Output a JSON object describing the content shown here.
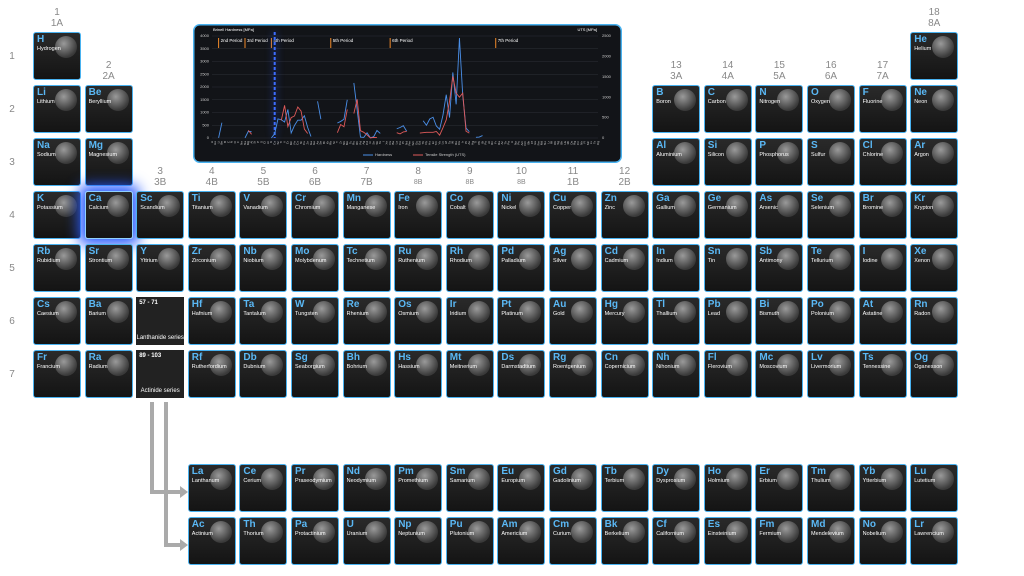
{
  "groups": [
    {
      "number": "1",
      "label": "1A"
    },
    {
      "number": "2",
      "label": "2A"
    },
    {
      "number": "3",
      "label": "3B"
    },
    {
      "number": "4",
      "label": "4B"
    },
    {
      "number": "5",
      "label": "5B"
    },
    {
      "number": "6",
      "label": "6B"
    },
    {
      "number": "7",
      "label": "7B"
    },
    {
      "number": "8",
      "label": "8B"
    },
    {
      "number": "9",
      "label": "8B"
    },
    {
      "number": "10",
      "label": "8B"
    },
    {
      "number": "11",
      "label": "1B"
    },
    {
      "number": "12",
      "label": "2B"
    },
    {
      "number": "13",
      "label": "3A"
    },
    {
      "number": "14",
      "label": "4A"
    },
    {
      "number": "15",
      "label": "5A"
    },
    {
      "number": "16",
      "label": "6A"
    },
    {
      "number": "17",
      "label": "7A"
    },
    {
      "number": "18",
      "label": "8A"
    }
  ],
  "periods": [
    "1",
    "2",
    "3",
    "4",
    "5",
    "6",
    "7"
  ],
  "highlight": "Ca",
  "lanthanide_placeholder": {
    "range": "57 - 71",
    "label": "Lanthanide series"
  },
  "actinide_placeholder": {
    "range": "89 - 103",
    "label": "Actinide series"
  },
  "elements": [
    [
      "H",
      "Hydrogen"
    ],
    [
      "He",
      "Helium"
    ],
    [
      "Li",
      "Lithium"
    ],
    [
      "Be",
      "Beryllium"
    ],
    [
      "B",
      "Boron"
    ],
    [
      "C",
      "Carbon"
    ],
    [
      "N",
      "Nitrogen"
    ],
    [
      "O",
      "Oxygen"
    ],
    [
      "F",
      "Fluorine"
    ],
    [
      "Ne",
      "Neon"
    ],
    [
      "Na",
      "Sodium"
    ],
    [
      "Mg",
      "Magnesium"
    ],
    [
      "Al",
      "Aluminium"
    ],
    [
      "Si",
      "Silicon"
    ],
    [
      "P",
      "Phosphorus"
    ],
    [
      "S",
      "Sulfur"
    ],
    [
      "Cl",
      "Chlorine"
    ],
    [
      "Ar",
      "Argon"
    ],
    [
      "K",
      "Potassium"
    ],
    [
      "Ca",
      "Calcium"
    ],
    [
      "Sc",
      "Scandium"
    ],
    [
      "Ti",
      "Titanium"
    ],
    [
      "V",
      "Vanadium"
    ],
    [
      "Cr",
      "Chromium"
    ],
    [
      "Mn",
      "Manganese"
    ],
    [
      "Fe",
      "Iron"
    ],
    [
      "Co",
      "Cobalt"
    ],
    [
      "Ni",
      "Nickel"
    ],
    [
      "Cu",
      "Copper"
    ],
    [
      "Zn",
      "Zinc"
    ],
    [
      "Ga",
      "Gallium"
    ],
    [
      "Ge",
      "Germanium"
    ],
    [
      "As",
      "Arsenic"
    ],
    [
      "Se",
      "Selenium"
    ],
    [
      "Br",
      "Bromine"
    ],
    [
      "Kr",
      "Krypton"
    ],
    [
      "Rb",
      "Rubidium"
    ],
    [
      "Sr",
      "Strontium"
    ],
    [
      "Y",
      "Yttrium"
    ],
    [
      "Zr",
      "Zirconium"
    ],
    [
      "Nb",
      "Niobium"
    ],
    [
      "Mo",
      "Molybdenum"
    ],
    [
      "Tc",
      "Technetium"
    ],
    [
      "Ru",
      "Ruthenium"
    ],
    [
      "Rh",
      "Rhodium"
    ],
    [
      "Pd",
      "Palladium"
    ],
    [
      "Ag",
      "Silver"
    ],
    [
      "Cd",
      "Cadmium"
    ],
    [
      "In",
      "Indium"
    ],
    [
      "Sn",
      "Tin"
    ],
    [
      "Sb",
      "Antimony"
    ],
    [
      "Te",
      "Tellurium"
    ],
    [
      "I",
      "Iodine"
    ],
    [
      "Xe",
      "Xenon"
    ],
    [
      "Cs",
      "Caesium"
    ],
    [
      "Ba",
      "Barium"
    ],
    [
      "La",
      "Lanthanum"
    ],
    [
      "Ce",
      "Cerium"
    ],
    [
      "Pr",
      "Praseodymium"
    ],
    [
      "Nd",
      "Neodymium"
    ],
    [
      "Pm",
      "Promethium"
    ],
    [
      "Sm",
      "Samarium"
    ],
    [
      "Eu",
      "Europium"
    ],
    [
      "Gd",
      "Gadolinium"
    ],
    [
      "Tb",
      "Terbium"
    ],
    [
      "Dy",
      "Dysprosium"
    ],
    [
      "Ho",
      "Holmium"
    ],
    [
      "Er",
      "Erbium"
    ],
    [
      "Tm",
      "Thulium"
    ],
    [
      "Yb",
      "Ytterbium"
    ],
    [
      "Lu",
      "Lutetium"
    ],
    [
      "Hf",
      "Hafnium"
    ],
    [
      "Ta",
      "Tantalum"
    ],
    [
      "W",
      "Tungsten"
    ],
    [
      "Re",
      "Rhenium"
    ],
    [
      "Os",
      "Osmium"
    ],
    [
      "Ir",
      "Iridium"
    ],
    [
      "Pt",
      "Platinum"
    ],
    [
      "Au",
      "Gold"
    ],
    [
      "Hg",
      "Mercury"
    ],
    [
      "Tl",
      "Thallium"
    ],
    [
      "Pb",
      "Lead"
    ],
    [
      "Bi",
      "Bismuth"
    ],
    [
      "Po",
      "Polonium"
    ],
    [
      "At",
      "Astatine"
    ],
    [
      "Rn",
      "Radon"
    ],
    [
      "Fr",
      "Francium"
    ],
    [
      "Ra",
      "Radium"
    ],
    [
      "Ac",
      "Actinium"
    ],
    [
      "Th",
      "Thorium"
    ],
    [
      "Pa",
      "Protactinium"
    ],
    [
      "U",
      "Uranium"
    ],
    [
      "Np",
      "Neptunium"
    ],
    [
      "Pu",
      "Plutonium"
    ],
    [
      "Am",
      "Americium"
    ],
    [
      "Cm",
      "Curium"
    ],
    [
      "Bk",
      "Berkelium"
    ],
    [
      "Cf",
      "Californium"
    ],
    [
      "Es",
      "Einsteinium"
    ],
    [
      "Fm",
      "Fermium"
    ],
    [
      "Md",
      "Mendelevium"
    ],
    [
      "No",
      "Nobelium"
    ],
    [
      "Lr",
      "Lawrencium"
    ],
    [
      "Rf",
      "Rutherfordium"
    ],
    [
      "Db",
      "Dubnium"
    ],
    [
      "Sg",
      "Seaborgium"
    ],
    [
      "Bh",
      "Bohrium"
    ],
    [
      "Hs",
      "Hassium"
    ],
    [
      "Mt",
      "Meitnerium"
    ],
    [
      "Ds",
      "Darmstadtium"
    ],
    [
      "Rg",
      "Roentgenium"
    ],
    [
      "Cn",
      "Copernicium"
    ],
    [
      "Nh",
      "Nihonium"
    ],
    [
      "Fl",
      "Flerovium"
    ],
    [
      "Mc",
      "Moscovium"
    ],
    [
      "Lv",
      "Livermorium"
    ],
    [
      "Ts",
      "Tennessine"
    ],
    [
      "Og",
      "Oganesson"
    ]
  ],
  "chart_data": {
    "type": "line",
    "y_label": "Brinell Hardness [MPa]",
    "y2_label": "UTS [MPa]",
    "categories": [
      "H",
      "He",
      "Li",
      "Be",
      "B",
      "C",
      "N",
      "O",
      "F",
      "Ne",
      "Na",
      "Mg",
      "Al",
      "Si",
      "P",
      "S",
      "Cl",
      "Ar",
      "K",
      "Ca",
      "Sc",
      "Ti",
      "V",
      "Cr",
      "Mn",
      "Fe",
      "Co",
      "Ni",
      "Cu",
      "Zn",
      "Ga",
      "Ge",
      "As",
      "Se",
      "Br",
      "Kr",
      "Rb",
      "Sr",
      "Y",
      "Zr",
      "Nb",
      "Mo",
      "Tc",
      "Ru",
      "Rh",
      "Pd",
      "Ag",
      "Cd",
      "In",
      "Sn",
      "Sb",
      "Te",
      "I",
      "Xe",
      "Cs",
      "Ba",
      "La",
      "Ce",
      "Pr",
      "Nd",
      "Pm",
      "Sm",
      "Eu",
      "Gd",
      "Tb",
      "Dy",
      "Ho",
      "Er",
      "Tm",
      "Yb",
      "Lu",
      "Hf",
      "Ta",
      "W",
      "Re",
      "Os",
      "Ir",
      "Pt",
      "Au",
      "Hg",
      "Tl",
      "Pb",
      "Bi",
      "Po",
      "At",
      "Rn",
      "Fr",
      "Ra",
      "Ac",
      "Th",
      "Pa",
      "U",
      "Np",
      "Pu",
      "Am",
      "Cm",
      "Bk",
      "Cf",
      "Es",
      "Fm",
      "Md",
      "No",
      "Lr",
      "Rf",
      "Db",
      "Sg",
      "Bh",
      "Hs",
      "Mt",
      "Ds",
      "Rg",
      "Cn",
      "Nh",
      "Fl",
      "Mc",
      "Lv",
      "Ts",
      "Og"
    ],
    "series": [
      {
        "name": "Hardness",
        "color": "#4a8fe8",
        "values": [
          null,
          null,
          5,
          600,
          null,
          null,
          null,
          null,
          null,
          null,
          1,
          260,
          245,
          null,
          null,
          null,
          null,
          null,
          0,
          170,
          750,
          716,
          628,
          1120,
          196,
          490,
          700,
          700,
          874,
          412,
          60,
          null,
          1440,
          736,
          null,
          null,
          0,
          null,
          589,
          650,
          736,
          1500,
          null,
          2160,
          1100,
          37,
          24,
          203,
          9,
          51,
          294,
          180,
          null,
          null,
          0,
          null,
          363,
          412,
          481,
          265,
          null,
          441,
          null,
          null,
          677,
          500,
          746,
          814,
          471,
          343,
          893,
          1700,
          800,
          2570,
          1320,
          3920,
          1670,
          392,
          245,
          null,
          27,
          38,
          94,
          null,
          null,
          null,
          null,
          null,
          null,
          400,
          null,
          2400,
          null,
          null,
          null,
          null,
          null,
          null,
          null,
          null,
          null,
          null,
          null,
          null,
          null,
          null,
          null,
          null,
          null,
          null,
          null,
          null,
          null,
          null,
          null,
          null,
          null,
          null
        ]
      },
      {
        "name": "Tensile Strength (UTS)",
        "color": "#e05a5a",
        "axis": "y2",
        "values": [
          null,
          null,
          null,
          370,
          null,
          null,
          null,
          null,
          null,
          null,
          null,
          190,
          90,
          null,
          null,
          null,
          null,
          null,
          null,
          null,
          null,
          430,
          800,
          280,
          500,
          540,
          760,
          660,
          220,
          110,
          null,
          null,
          null,
          null,
          null,
          null,
          null,
          null,
          130,
          330,
          275,
          700,
          null,
          600,
          950,
          180,
          140,
          75,
          2,
          15,
          11,
          null,
          null,
          null,
          null,
          null,
          130,
          100,
          150,
          160,
          null,
          125,
          null,
          120,
          130,
          140,
          140,
          140,
          160,
          70,
          250,
          445,
          900,
          1510,
          1100,
          1000,
          1100,
          165,
          120,
          null,
          null,
          18,
          null,
          null,
          null,
          null,
          null,
          null,
          null,
          220,
          null,
          400,
          null,
          null,
          null,
          null,
          null,
          null,
          null,
          null,
          null,
          null,
          null,
          null,
          null,
          null,
          null,
          null,
          null,
          null,
          null,
          null,
          null,
          null,
          null,
          null,
          null,
          null
        ]
      }
    ],
    "ylim": [
      0,
      4000
    ],
    "yticks": [
      0,
      500,
      1000,
      1500,
      2000,
      2500,
      3000,
      3500,
      4000
    ],
    "y2lim": [
      0,
      2500
    ],
    "y2ticks": [
      0,
      500,
      1000,
      1500,
      2000,
      2500
    ],
    "annotations": [
      {
        "text": "2nd Period",
        "at": "Li"
      },
      {
        "text": "3rd Period",
        "at": "Na"
      },
      {
        "text": "4th Period",
        "at": "K"
      },
      {
        "text": "5th Period",
        "at": "Rb"
      },
      {
        "text": "6th Period",
        "at": "Cs"
      },
      {
        "text": "7th Period",
        "at": "Fr"
      }
    ],
    "grid": true
  }
}
